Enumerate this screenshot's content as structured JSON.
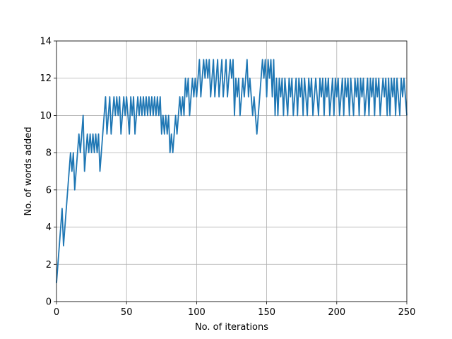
{
  "chart_data": {
    "type": "line",
    "xlabel": "No. of iterations",
    "ylabel": "No. of words added",
    "color": "#1f77b4",
    "grid": true,
    "xlim": [
      0,
      250
    ],
    "xticks": [
      0,
      50,
      100,
      150,
      200,
      250
    ],
    "ylim": [
      0,
      14
    ],
    "yticks": [
      0,
      2,
      4,
      6,
      8,
      10,
      12,
      14
    ],
    "x": [
      0,
      1,
      2,
      3,
      4,
      5,
      6,
      7,
      8,
      9,
      10,
      11,
      12,
      13,
      14,
      15,
      16,
      17,
      18,
      19,
      20,
      21,
      22,
      23,
      24,
      25,
      26,
      27,
      28,
      29,
      30,
      31,
      32,
      33,
      34,
      35,
      36,
      37,
      38,
      39,
      40,
      41,
      42,
      43,
      44,
      45,
      46,
      47,
      48,
      49,
      50,
      51,
      52,
      53,
      54,
      55,
      56,
      57,
      58,
      59,
      60,
      61,
      62,
      63,
      64,
      65,
      66,
      67,
      68,
      69,
      70,
      71,
      72,
      73,
      74,
      75,
      76,
      77,
      78,
      79,
      80,
      81,
      82,
      83,
      84,
      85,
      86,
      87,
      88,
      89,
      90,
      91,
      92,
      93,
      94,
      95,
      96,
      97,
      98,
      99,
      100,
      101,
      102,
      103,
      104,
      105,
      106,
      107,
      108,
      109,
      110,
      111,
      112,
      113,
      114,
      115,
      116,
      117,
      118,
      119,
      120,
      121,
      122,
      123,
      124,
      125,
      126,
      127,
      128,
      129,
      130,
      131,
      132,
      133,
      134,
      135,
      136,
      137,
      138,
      139,
      140,
      141,
      142,
      143,
      144,
      145,
      146,
      147,
      148,
      149,
      150,
      151,
      152,
      153,
      154,
      155,
      156,
      157,
      158,
      159,
      160,
      161,
      162,
      163,
      164,
      165,
      166,
      167,
      168,
      169,
      170,
      171,
      172,
      173,
      174,
      175,
      176,
      177,
      178,
      179,
      180,
      181,
      182,
      183,
      184,
      185,
      186,
      187,
      188,
      189,
      190,
      191,
      192,
      193,
      194,
      195,
      196,
      197,
      198,
      199,
      200,
      201,
      202,
      203,
      204,
      205,
      206,
      207,
      208,
      209,
      210,
      211,
      212,
      213,
      214,
      215,
      216,
      217,
      218,
      219,
      220,
      221,
      222,
      223,
      224,
      225,
      226,
      227,
      228,
      229,
      230,
      231,
      232,
      233,
      234,
      235,
      236,
      237,
      238,
      239,
      240,
      241,
      242,
      243,
      244,
      245,
      246,
      247,
      248,
      249,
      250
    ],
    "values": [
      1,
      2,
      3,
      4,
      5,
      3,
      4,
      5,
      6,
      7,
      8,
      7,
      8,
      6,
      7,
      8,
      9,
      8,
      9,
      10,
      7,
      8,
      9,
      8,
      9,
      8,
      9,
      8,
      9,
      8,
      9,
      7,
      8,
      9,
      10,
      11,
      9,
      10,
      11,
      9,
      10,
      11,
      10,
      11,
      10,
      11,
      9,
      10,
      11,
      10,
      11,
      10,
      9,
      11,
      10,
      11,
      9,
      10,
      11,
      10,
      11,
      10,
      11,
      10,
      11,
      10,
      11,
      10,
      11,
      10,
      11,
      10,
      11,
      10,
      11,
      9,
      10,
      9,
      10,
      9,
      10,
      8,
      9,
      8,
      9,
      10,
      9,
      10,
      11,
      10,
      11,
      10,
      12,
      11,
      12,
      10,
      11,
      12,
      11,
      12,
      11,
      12,
      13,
      11,
      12,
      13,
      12,
      13,
      12,
      13,
      11,
      12,
      13,
      11,
      12,
      13,
      11,
      12,
      13,
      11,
      12,
      13,
      11,
      12,
      13,
      12,
      13,
      10,
      12,
      11,
      12,
      10,
      11,
      12,
      11,
      12,
      13,
      11,
      12,
      11,
      10,
      11,
      10,
      9,
      10,
      11,
      12,
      13,
      12,
      13,
      11,
      13,
      12,
      13,
      11,
      13,
      10,
      12,
      10,
      12,
      11,
      12,
      10,
      12,
      11,
      10,
      12,
      11,
      12,
      10,
      11,
      12,
      10,
      12,
      11,
      12,
      10,
      12,
      11,
      10,
      12,
      11,
      12,
      10,
      11,
      12,
      11,
      10,
      12,
      11,
      12,
      10,
      12,
      11,
      12,
      10,
      11,
      12,
      10,
      12,
      11,
      12,
      10,
      11,
      12,
      10,
      12,
      11,
      12,
      10,
      12,
      11,
      10,
      12,
      11,
      12,
      10,
      12,
      11,
      12,
      10,
      11,
      12,
      10,
      12,
      11,
      12,
      10,
      12,
      11,
      12,
      10,
      11,
      12,
      11,
      12,
      10,
      12,
      10,
      12,
      11,
      12,
      10,
      12,
      11,
      10,
      12,
      11,
      12,
      11,
      10
    ]
  }
}
